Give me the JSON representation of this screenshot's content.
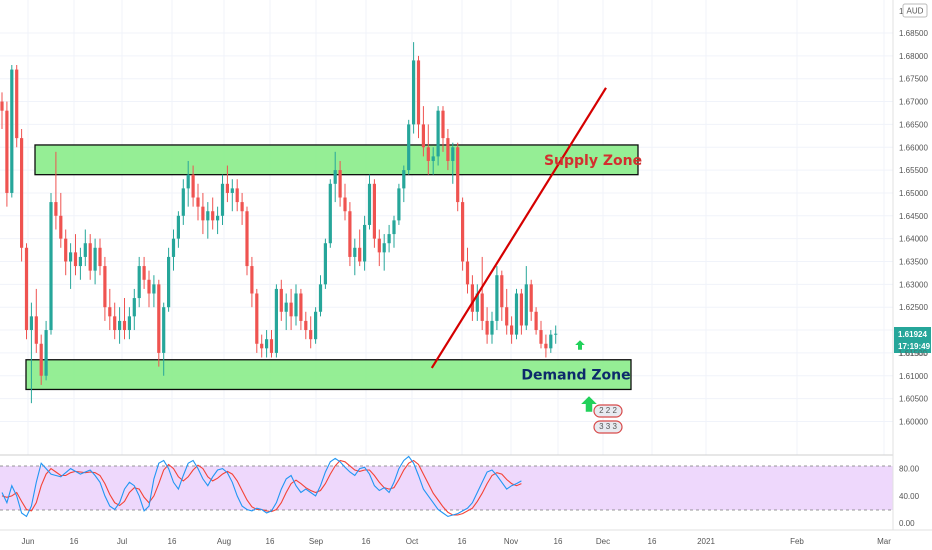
{
  "chart_data": {
    "type": "candlestick",
    "symbol_currency": "AUD",
    "x_tick_labels": [
      "Jun",
      "16",
      "Jul",
      "16",
      "Aug",
      "16",
      "Sep",
      "16",
      "Oct",
      "16",
      "Nov",
      "16",
      "Dec",
      "16",
      "2021",
      "Feb",
      "Mar"
    ],
    "y_tick_labels": [
      "1.68500",
      "1.68000",
      "1.67500",
      "1.67000",
      "1.66500",
      "1.66000",
      "1.65500",
      "1.65000",
      "1.64500",
      "1.64000",
      "1.63500",
      "1.63000",
      "1.62500",
      "1.62000",
      "1.61500",
      "1.61000",
      "1.60500",
      "1.60000"
    ],
    "y_range": [
      1.597,
      1.69
    ],
    "top_label": "1.",
    "last_price": "1.61924",
    "countdown": "17:19:49",
    "partial_price_label": "1.61500",
    "candles_ohlc": [
      [
        1.67,
        1.672,
        1.664,
        1.668
      ],
      [
        1.668,
        1.67,
        1.647,
        1.65
      ],
      [
        1.65,
        1.678,
        1.649,
        1.677
      ],
      [
        1.677,
        1.678,
        1.66,
        1.662
      ],
      [
        1.662,
        1.664,
        1.635,
        1.638
      ],
      [
        1.638,
        1.639,
        1.618,
        1.62
      ],
      [
        1.62,
        1.626,
        1.604,
        1.623
      ],
      [
        1.623,
        1.629,
        1.615,
        1.617
      ],
      [
        1.617,
        1.619,
        1.608,
        1.61
      ],
      [
        1.61,
        1.622,
        1.609,
        1.62
      ],
      [
        1.62,
        1.65,
        1.619,
        1.648
      ],
      [
        1.648,
        1.659,
        1.642,
        1.645
      ],
      [
        1.645,
        1.65,
        1.638,
        1.64
      ],
      [
        1.64,
        1.642,
        1.632,
        1.635
      ],
      [
        1.635,
        1.639,
        1.629,
        1.637
      ],
      [
        1.637,
        1.641,
        1.632,
        1.634
      ],
      [
        1.634,
        1.638,
        1.631,
        1.636
      ],
      [
        1.636,
        1.642,
        1.634,
        1.639
      ],
      [
        1.639,
        1.641,
        1.631,
        1.633
      ],
      [
        1.633,
        1.64,
        1.63,
        1.638
      ],
      [
        1.638,
        1.64,
        1.632,
        1.634
      ],
      [
        1.634,
        1.636,
        1.622,
        1.625
      ],
      [
        1.625,
        1.629,
        1.62,
        1.623
      ],
      [
        1.623,
        1.626,
        1.618,
        1.62
      ],
      [
        1.62,
        1.625,
        1.617,
        1.622
      ],
      [
        1.622,
        1.627,
        1.618,
        1.62
      ],
      [
        1.62,
        1.625,
        1.618,
        1.623
      ],
      [
        1.623,
        1.629,
        1.62,
        1.627
      ],
      [
        1.627,
        1.636,
        1.625,
        1.634
      ],
      [
        1.634,
        1.636,
        1.629,
        1.631
      ],
      [
        1.631,
        1.633,
        1.625,
        1.628
      ],
      [
        1.628,
        1.632,
        1.625,
        1.63
      ],
      [
        1.63,
        1.631,
        1.612,
        1.615
      ],
      [
        1.615,
        1.626,
        1.61,
        1.625
      ],
      [
        1.625,
        1.638,
        1.624,
        1.636
      ],
      [
        1.636,
        1.642,
        1.633,
        1.64
      ],
      [
        1.64,
        1.646,
        1.638,
        1.645
      ],
      [
        1.645,
        1.653,
        1.643,
        1.651
      ],
      [
        1.651,
        1.657,
        1.647,
        1.654
      ],
      [
        1.654,
        1.656,
        1.647,
        1.649
      ],
      [
        1.649,
        1.652,
        1.644,
        1.647
      ],
      [
        1.647,
        1.65,
        1.641,
        1.644
      ],
      [
        1.644,
        1.648,
        1.64,
        1.646
      ],
      [
        1.646,
        1.649,
        1.642,
        1.644
      ],
      [
        1.644,
        1.647,
        1.641,
        1.645
      ],
      [
        1.645,
        1.654,
        1.643,
        1.652
      ],
      [
        1.652,
        1.656,
        1.648,
        1.65
      ],
      [
        1.65,
        1.653,
        1.646,
        1.651
      ],
      [
        1.651,
        1.653,
        1.646,
        1.648
      ],
      [
        1.648,
        1.65,
        1.643,
        1.646
      ],
      [
        1.646,
        1.647,
        1.632,
        1.634
      ],
      [
        1.634,
        1.636,
        1.625,
        1.628
      ],
      [
        1.628,
        1.629,
        1.615,
        1.617
      ],
      [
        1.617,
        1.619,
        1.614,
        1.616
      ],
      [
        1.616,
        1.62,
        1.614,
        1.618
      ],
      [
        1.618,
        1.62,
        1.614,
        1.615
      ],
      [
        1.615,
        1.63,
        1.614,
        1.629
      ],
      [
        1.629,
        1.631,
        1.622,
        1.624
      ],
      [
        1.624,
        1.628,
        1.62,
        1.626
      ],
      [
        1.626,
        1.629,
        1.62,
        1.623
      ],
      [
        1.623,
        1.63,
        1.621,
        1.628
      ],
      [
        1.628,
        1.629,
        1.62,
        1.622
      ],
      [
        1.622,
        1.624,
        1.618,
        1.62
      ],
      [
        1.62,
        1.623,
        1.616,
        1.618
      ],
      [
        1.618,
        1.625,
        1.617,
        1.624
      ],
      [
        1.624,
        1.632,
        1.623,
        1.63
      ],
      [
        1.63,
        1.64,
        1.629,
        1.639
      ],
      [
        1.639,
        1.653,
        1.638,
        1.652
      ],
      [
        1.652,
        1.659,
        1.648,
        1.655
      ],
      [
        1.655,
        1.657,
        1.647,
        1.649
      ],
      [
        1.649,
        1.652,
        1.644,
        1.646
      ],
      [
        1.646,
        1.648,
        1.634,
        1.636
      ],
      [
        1.636,
        1.64,
        1.632,
        1.638
      ],
      [
        1.638,
        1.642,
        1.634,
        1.635
      ],
      [
        1.635,
        1.645,
        1.633,
        1.643
      ],
      [
        1.643,
        1.654,
        1.642,
        1.652
      ],
      [
        1.652,
        1.653,
        1.638,
        1.64
      ],
      [
        1.64,
        1.642,
        1.634,
        1.637
      ],
      [
        1.637,
        1.641,
        1.633,
        1.639
      ],
      [
        1.639,
        1.643,
        1.637,
        1.641
      ],
      [
        1.641,
        1.645,
        1.638,
        1.644
      ],
      [
        1.644,
        1.652,
        1.643,
        1.651
      ],
      [
        1.651,
        1.656,
        1.648,
        1.655
      ],
      [
        1.655,
        1.666,
        1.654,
        1.665
      ],
      [
        1.665,
        1.683,
        1.663,
        1.679
      ],
      [
        1.679,
        1.68,
        1.662,
        1.665
      ],
      [
        1.665,
        1.669,
        1.658,
        1.66
      ],
      [
        1.66,
        1.665,
        1.654,
        1.657
      ],
      [
        1.657,
        1.66,
        1.654,
        1.658
      ],
      [
        1.658,
        1.669,
        1.656,
        1.668
      ],
      [
        1.668,
        1.669,
        1.659,
        1.662
      ],
      [
        1.662,
        1.664,
        1.655,
        1.657
      ],
      [
        1.657,
        1.661,
        1.652,
        1.66
      ],
      [
        1.66,
        1.661,
        1.646,
        1.648
      ],
      [
        1.648,
        1.649,
        1.633,
        1.635
      ],
      [
        1.635,
        1.638,
        1.628,
        1.63
      ],
      [
        1.63,
        1.632,
        1.622,
        1.624
      ],
      [
        1.624,
        1.63,
        1.622,
        1.628
      ],
      [
        1.628,
        1.636,
        1.62,
        1.622
      ],
      [
        1.622,
        1.625,
        1.617,
        1.619
      ],
      [
        1.619,
        1.624,
        1.617,
        1.622
      ],
      [
        1.622,
        1.634,
        1.62,
        1.632
      ],
      [
        1.632,
        1.633,
        1.622,
        1.625
      ],
      [
        1.625,
        1.629,
        1.619,
        1.621
      ],
      [
        1.621,
        1.623,
        1.617,
        1.619
      ],
      [
        1.619,
        1.629,
        1.618,
        1.628
      ],
      [
        1.628,
        1.629,
        1.619,
        1.621
      ],
      [
        1.621,
        1.634,
        1.62,
        1.63
      ],
      [
        1.63,
        1.631,
        1.622,
        1.624
      ],
      [
        1.624,
        1.625,
        1.619,
        1.62
      ],
      [
        1.62,
        1.622,
        1.616,
        1.617
      ],
      [
        1.617,
        1.619,
        1.614,
        1.616
      ],
      [
        1.616,
        1.62,
        1.615,
        1.619
      ],
      [
        1.619,
        1.621,
        1.617,
        1.6192
      ]
    ],
    "colors": {
      "up": "#26a69a",
      "down": "#ef5350",
      "zone_fill": "#90ee90",
      "trendline": "#d50000",
      "osc_bg": "#e7c8fb",
      "k_line": "#2196f3",
      "d_line": "#f44336",
      "arrow": "#21d15a"
    },
    "annotations": [
      {
        "type": "zone",
        "label": "Supply Zone",
        "price_low": 1.654,
        "price_high": 1.6605,
        "label_color": "#d32f2f"
      },
      {
        "type": "zone",
        "label": "Demand Zone",
        "price_low": 1.607,
        "price_high": 1.6135,
        "label_color": "#0d2a6b"
      },
      {
        "type": "trendline",
        "from": [
          82,
          1.6117
        ],
        "to": [
          130,
          1.673
        ]
      }
    ],
    "oscillator": {
      "type": "stochastic_rsi",
      "tick_labels": [
        "80.00",
        "40.00",
        "0.00"
      ],
      "y_range": [
        -10,
        100
      ],
      "levels": [
        80,
        20
      ],
      "k_values": [
        45,
        30,
        55,
        40,
        15,
        10,
        25,
        60,
        88,
        80,
        72,
        70,
        68,
        74,
        80,
        76,
        72,
        75,
        78,
        70,
        60,
        40,
        25,
        20,
        30,
        50,
        60,
        55,
        40,
        18,
        25,
        65,
        88,
        92,
        80,
        60,
        50,
        70,
        88,
        92,
        80,
        65,
        55,
        68,
        78,
        80,
        74,
        60,
        40,
        25,
        20,
        18,
        22,
        20,
        15,
        18,
        30,
        50,
        65,
        70,
        55,
        45,
        50,
        45,
        40,
        55,
        75,
        90,
        95,
        90,
        82,
        75,
        70,
        80,
        82,
        72,
        55,
        48,
        52,
        45,
        60,
        80,
        92,
        98,
        88,
        70,
        50,
        40,
        30,
        20,
        15,
        10,
        12,
        14,
        18,
        22,
        30,
        45,
        60,
        75,
        78,
        70,
        60,
        50,
        55,
        58,
        62
      ],
      "d_values": [
        40,
        38,
        40,
        45,
        32,
        20,
        18,
        30,
        55,
        72,
        80,
        75,
        70,
        70,
        74,
        76,
        75,
        74,
        75,
        74,
        70,
        58,
        42,
        30,
        26,
        32,
        45,
        52,
        50,
        38,
        30,
        40,
        58,
        78,
        86,
        80,
        68,
        62,
        68,
        78,
        85,
        80,
        68,
        62,
        66,
        72,
        76,
        72,
        62,
        48,
        34,
        24,
        20,
        20,
        18,
        17,
        20,
        30,
        45,
        58,
        63,
        58,
        52,
        48,
        45,
        48,
        58,
        72,
        84,
        92,
        90,
        84,
        78,
        76,
        78,
        78,
        70,
        60,
        52,
        50,
        52,
        64,
        78,
        88,
        92,
        86,
        72,
        58,
        44,
        34,
        24,
        16,
        12,
        12,
        14,
        18,
        22,
        32,
        44,
        58,
        70,
        74,
        72,
        64,
        58,
        55,
        58
      ]
    },
    "markers": [
      {
        "type": "up-arrow",
        "candle": 114
      },
      {
        "type": "label-stack",
        "candle": 117,
        "lines": [
          "2 2 2",
          "3 3 3"
        ]
      }
    ]
  }
}
